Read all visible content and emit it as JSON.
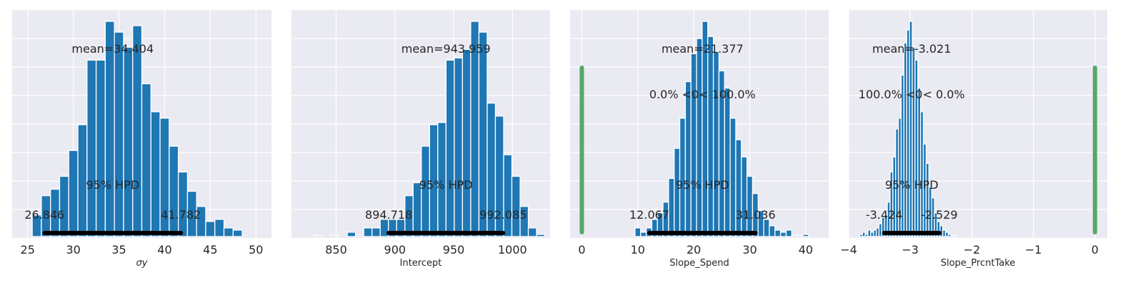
{
  "chart_data": [
    {
      "type": "bar",
      "xlabel": "σy",
      "xlim": [
        23.3,
        51.7
      ],
      "xticks": [
        25,
        30,
        35,
        40,
        45,
        50
      ],
      "mean_label": "mean=34.404",
      "hpd_label": "95% HPD",
      "hpd": [
        26.846,
        41.782
      ],
      "hpd_low_label": "26.846",
      "hpd_high_label": "41.782",
      "ref_label": "",
      "bin_width": 1.0,
      "bins": [
        {
          "x": 26,
          "height": 0.1
        },
        {
          "x": 27,
          "height": 0.19
        },
        {
          "x": 28,
          "height": 0.22
        },
        {
          "x": 29,
          "height": 0.28
        },
        {
          "x": 30,
          "height": 0.4
        },
        {
          "x": 31,
          "height": 0.52
        },
        {
          "x": 32,
          "height": 0.82
        },
        {
          "x": 33,
          "height": 0.82
        },
        {
          "x": 34,
          "height": 1.0
        },
        {
          "x": 35,
          "height": 0.95
        },
        {
          "x": 36,
          "height": 0.88
        },
        {
          "x": 37,
          "height": 0.98
        },
        {
          "x": 38,
          "height": 0.71
        },
        {
          "x": 39,
          "height": 0.58
        },
        {
          "x": 40,
          "height": 0.55
        },
        {
          "x": 41,
          "height": 0.42
        },
        {
          "x": 42,
          "height": 0.3
        },
        {
          "x": 43,
          "height": 0.21
        },
        {
          "x": 44,
          "height": 0.14
        },
        {
          "x": 45,
          "height": 0.07
        },
        {
          "x": 46,
          "height": 0.08
        },
        {
          "x": 47,
          "height": 0.04
        },
        {
          "x": 48,
          "height": 0.03
        }
      ]
    },
    {
      "type": "bar",
      "xlabel": "Intercept",
      "xlim": [
        812,
        1032
      ],
      "xticks": [
        850,
        900,
        950,
        1000
      ],
      "mean_label": "mean=943.959",
      "hpd_label": "95% HPD",
      "hpd": [
        894.718,
        992.085
      ],
      "hpd_low_label": "894.718",
      "hpd_high_label": "992.085",
      "ref_label": "",
      "bin_width": 7.0,
      "bins": [
        {
          "x": 835,
          "height": 0.005
        },
        {
          "x": 849,
          "height": 0.005
        },
        {
          "x": 863,
          "height": 0.02
        },
        {
          "x": 877,
          "height": 0.04
        },
        {
          "x": 884,
          "height": 0.04
        },
        {
          "x": 891,
          "height": 0.08
        },
        {
          "x": 898,
          "height": 0.08
        },
        {
          "x": 905,
          "height": 0.08
        },
        {
          "x": 912,
          "height": 0.19
        },
        {
          "x": 919,
          "height": 0.25
        },
        {
          "x": 926,
          "height": 0.42
        },
        {
          "x": 933,
          "height": 0.52
        },
        {
          "x": 940,
          "height": 0.53
        },
        {
          "x": 947,
          "height": 0.82
        },
        {
          "x": 954,
          "height": 0.83
        },
        {
          "x": 961,
          "height": 0.87
        },
        {
          "x": 968,
          "height": 1.0
        },
        {
          "x": 975,
          "height": 0.95
        },
        {
          "x": 982,
          "height": 0.62
        },
        {
          "x": 989,
          "height": 0.56
        },
        {
          "x": 996,
          "height": 0.38
        },
        {
          "x": 1003,
          "height": 0.28
        },
        {
          "x": 1010,
          "height": 0.14
        },
        {
          "x": 1017,
          "height": 0.04
        },
        {
          "x": 1024,
          "height": 0.01
        }
      ]
    },
    {
      "type": "bar",
      "xlabel": "Slope_Spend",
      "xlim": [
        -2.1,
        44.1
      ],
      "xticks": [
        0,
        10,
        20,
        30,
        40
      ],
      "mean_label": "mean=21.377",
      "hpd_label": "95% HPD",
      "hpd": [
        12.067,
        31.036
      ],
      "hpd_low_label": "12.067",
      "hpd_high_label": "31.036",
      "ref_label": "0.0% <0< 100.0%",
      "ref_x": 0,
      "bin_width": 1.0,
      "bins": [
        {
          "x": 10,
          "height": 0.04
        },
        {
          "x": 11,
          "height": 0.02
        },
        {
          "x": 12,
          "height": 0.04
        },
        {
          "x": 13,
          "height": 0.08
        },
        {
          "x": 14,
          "height": 0.11
        },
        {
          "x": 15,
          "height": 0.16
        },
        {
          "x": 16,
          "height": 0.27
        },
        {
          "x": 17,
          "height": 0.41
        },
        {
          "x": 18,
          "height": 0.55
        },
        {
          "x": 19,
          "height": 0.72
        },
        {
          "x": 20,
          "height": 0.85
        },
        {
          "x": 21,
          "height": 0.92
        },
        {
          "x": 22,
          "height": 1.0
        },
        {
          "x": 23,
          "height": 0.93
        },
        {
          "x": 24,
          "height": 0.86
        },
        {
          "x": 25,
          "height": 0.77
        },
        {
          "x": 26,
          "height": 0.69
        },
        {
          "x": 27,
          "height": 0.55
        },
        {
          "x": 28,
          "height": 0.45
        },
        {
          "x": 29,
          "height": 0.37
        },
        {
          "x": 30,
          "height": 0.28
        },
        {
          "x": 31,
          "height": 0.2
        },
        {
          "x": 32,
          "height": 0.12
        },
        {
          "x": 33,
          "height": 0.08
        },
        {
          "x": 34,
          "height": 0.05
        },
        {
          "x": 35,
          "height": 0.03
        },
        {
          "x": 36,
          "height": 0.02
        },
        {
          "x": 37,
          "height": 0.03
        },
        {
          "x": 38,
          "height": 0.005
        },
        {
          "x": 39,
          "height": 0.005
        },
        {
          "x": 40,
          "height": 0.01
        }
      ]
    },
    {
      "type": "bar",
      "xlabel": "Slope_PrcntTake",
      "xlim": [
        -4.0,
        0.2
      ],
      "xticks": [
        -4,
        -3,
        -2,
        -1,
        0
      ],
      "mean_label": "mean=-3.021",
      "hpd_label": "95% HPD",
      "hpd": [
        -3.424,
        -2.529
      ],
      "hpd_low_label": "-3.424",
      "hpd_high_label": "-2.529",
      "ref_label": "100.0% <0< 0.0%",
      "ref_x": 0,
      "bin_width": 0.045,
      "bins": [
        {
          "x": -3.8,
          "height": 0.01
        },
        {
          "x": -3.755,
          "height": 0.02
        },
        {
          "x": -3.71,
          "height": 0.01
        },
        {
          "x": -3.665,
          "height": 0.03
        },
        {
          "x": -3.62,
          "height": 0.02
        },
        {
          "x": -3.575,
          "height": 0.03
        },
        {
          "x": -3.53,
          "height": 0.04
        },
        {
          "x": -3.485,
          "height": 0.06
        },
        {
          "x": -3.44,
          "height": 0.09
        },
        {
          "x": -3.395,
          "height": 0.1
        },
        {
          "x": -3.35,
          "height": 0.16
        },
        {
          "x": -3.305,
          "height": 0.3
        },
        {
          "x": -3.26,
          "height": 0.37
        },
        {
          "x": -3.215,
          "height": 0.5
        },
        {
          "x": -3.17,
          "height": 0.55
        },
        {
          "x": -3.125,
          "height": 0.75
        },
        {
          "x": -3.08,
          "height": 0.9
        },
        {
          "x": -3.035,
          "height": 0.96
        },
        {
          "x": -2.99,
          "height": 1.0
        },
        {
          "x": -2.945,
          "height": 0.88
        },
        {
          "x": -2.9,
          "height": 0.82
        },
        {
          "x": -2.855,
          "height": 0.69
        },
        {
          "x": -2.81,
          "height": 0.58
        },
        {
          "x": -2.765,
          "height": 0.43
        },
        {
          "x": -2.72,
          "height": 0.34
        },
        {
          "x": -2.675,
          "height": 0.23
        },
        {
          "x": -2.63,
          "height": 0.18
        },
        {
          "x": -2.585,
          "height": 0.11
        },
        {
          "x": -2.54,
          "height": 0.07
        },
        {
          "x": -2.495,
          "height": 0.05
        },
        {
          "x": -2.45,
          "height": 0.03
        },
        {
          "x": -2.405,
          "height": 0.02
        },
        {
          "x": -2.36,
          "height": 0.01
        },
        {
          "x": -2.315,
          "height": 0.005
        },
        {
          "x": -2.27,
          "height": 0.005
        }
      ]
    }
  ]
}
